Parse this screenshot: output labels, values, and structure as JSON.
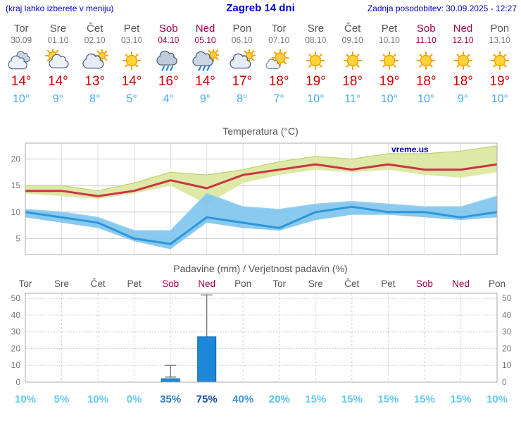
{
  "header": {
    "menu_note": "(kraj lahko izberete v meniju)",
    "title": "Zagreb 14 dni",
    "last_update": "Zadnja posodobitev: 30.09.2025 - 12:27"
  },
  "colors": {
    "title_blue": "#0000CC",
    "day_gray": "#555555",
    "weekend_red": "#A3004B",
    "tmax_red": "#D40000",
    "tmin_blue": "#45ACF0",
    "bar_blue": "#1E88D8",
    "bar_border": "#0D5FA8",
    "temp_line_red": "#CC3344",
    "temp_line_blue": "#2E96D8",
    "temp_band_green": "#DEE9A6",
    "temp_band_blue": "#7CC4EC"
  },
  "days": [
    {
      "name": "Tor",
      "date": "30.09",
      "weekend": false,
      "icon": "cloudy",
      "tmax": "14°",
      "tmin": "10°",
      "pop": "10%",
      "pop_color": "#62CAF2"
    },
    {
      "name": "Sre",
      "date": "01.10",
      "weekend": false,
      "icon": "partly-cloudy",
      "tmax": "14°",
      "tmin": "9°",
      "pop": "5%",
      "pop_color": "#62CAF2"
    },
    {
      "name": "Čet",
      "date": "02.10",
      "weekend": false,
      "icon": "mostly-cloudy",
      "tmax": "13°",
      "tmin": "8°",
      "pop": "10%",
      "pop_color": "#62CAF2"
    },
    {
      "name": "Pet",
      "date": "03.10",
      "weekend": false,
      "icon": "sunny",
      "tmax": "14°",
      "tmin": "5°",
      "pop": "0%",
      "pop_color": "#62CAF2"
    },
    {
      "name": "Sob",
      "date": "04.10",
      "weekend": true,
      "icon": "rain",
      "tmax": "16°",
      "tmin": "4°",
      "pop": "35%",
      "pop_color": "#2F7CC0"
    },
    {
      "name": "Ned",
      "date": "05.10",
      "weekend": true,
      "icon": "rain-sun",
      "tmax": "14°",
      "tmin": "9°",
      "pop": "75%",
      "pop_color": "#16499E"
    },
    {
      "name": "Pon",
      "date": "06.10",
      "weekend": false,
      "icon": "mostly-cloudy",
      "tmax": "17°",
      "tmin": "8°",
      "pop": "40%",
      "pop_color": "#3E9AD8"
    },
    {
      "name": "Tor",
      "date": "07.10",
      "weekend": false,
      "icon": "partly-sunny",
      "tmax": "18°",
      "tmin": "7°",
      "pop": "20%",
      "pop_color": "#55BEEC"
    },
    {
      "name": "Sre",
      "date": "08.10",
      "weekend": false,
      "icon": "sunny",
      "tmax": "19°",
      "tmin": "10°",
      "pop": "15%",
      "pop_color": "#62CAF2"
    },
    {
      "name": "Čet",
      "date": "09.10",
      "weekend": false,
      "icon": "sunny",
      "tmax": "18°",
      "tmin": "11°",
      "pop": "15%",
      "pop_color": "#62CAF2"
    },
    {
      "name": "Pet",
      "date": "10.10",
      "weekend": false,
      "icon": "sunny",
      "tmax": "19°",
      "tmin": "10°",
      "pop": "15%",
      "pop_color": "#62CAF2"
    },
    {
      "name": "Sob",
      "date": "11.10",
      "weekend": true,
      "icon": "sunny",
      "tmax": "18°",
      "tmin": "10°",
      "pop": "15%",
      "pop_color": "#62CAF2"
    },
    {
      "name": "Ned",
      "date": "12.10",
      "weekend": true,
      "icon": "sunny",
      "tmax": "18°",
      "tmin": "9°",
      "pop": "15%",
      "pop_color": "#62CAF2"
    },
    {
      "name": "Pon",
      "date": "13.10",
      "weekend": false,
      "icon": "sunny",
      "tmax": "19°",
      "tmin": "10°",
      "pop": "10%",
      "pop_color": "#62CAF2"
    }
  ],
  "chart_data": [
    {
      "type": "line",
      "title": "Temperatura (°C)",
      "watermark": "vreme.us",
      "x_labels": [
        "Tor",
        "Sre",
        "Čet",
        "Pet",
        "Sob",
        "Ned",
        "Pon",
        "Tor",
        "Sre",
        "Čet",
        "Pet",
        "Sob",
        "Ned",
        "Pon"
      ],
      "ylim": [
        2,
        23
      ],
      "yticks": [
        5,
        10,
        15,
        20
      ],
      "series": [
        {
          "name": "tmax",
          "values": [
            14,
            14,
            13,
            14,
            16,
            14.5,
            17,
            18,
            19,
            18,
            19,
            18,
            18,
            19
          ]
        },
        {
          "name": "tmax_band_high",
          "values": [
            15,
            15,
            14,
            15.5,
            17.5,
            17,
            18,
            19.5,
            20.5,
            20,
            21,
            21,
            21.5,
            22.5
          ]
        },
        {
          "name": "tmax_band_low",
          "values": [
            13.5,
            13,
            12.5,
            13.5,
            15,
            11.5,
            15.5,
            17,
            18,
            17.5,
            18,
            17,
            16.5,
            17.5
          ]
        },
        {
          "name": "tmin",
          "values": [
            10,
            9,
            8,
            5,
            4,
            9,
            8,
            7,
            10,
            11,
            10,
            10,
            9,
            10
          ]
        },
        {
          "name": "tmin_band_high",
          "values": [
            10.5,
            10,
            9,
            6.5,
            6.5,
            13.5,
            11,
            10.5,
            11.5,
            12,
            11.5,
            11,
            11,
            13
          ]
        },
        {
          "name": "tmin_band_low",
          "values": [
            9,
            8,
            7,
            4.5,
            3,
            8,
            7,
            6.5,
            8.5,
            9.5,
            9.5,
            9,
            8.5,
            9
          ]
        }
      ]
    },
    {
      "type": "bar",
      "title": "Padavine (mm) / Verjetnost padavin (%)",
      "categories": [
        "Tor",
        "Sre",
        "Čet",
        "Pet",
        "Sob",
        "Ned",
        "Pon",
        "Tor",
        "Sre",
        "Čet",
        "Pet",
        "Sob",
        "Ned",
        "Pon"
      ],
      "ylim": [
        0,
        53
      ],
      "yticks": [
        0,
        10,
        20,
        30,
        40,
        50
      ],
      "values_mm": [
        0,
        0,
        0,
        0,
        2,
        27,
        0,
        0,
        0,
        0,
        0,
        0,
        0,
        0
      ],
      "whisker_low": [
        null,
        null,
        null,
        null,
        3,
        5,
        null,
        null,
        null,
        null,
        null,
        null,
        null,
        null
      ],
      "whisker_high": [
        null,
        null,
        null,
        null,
        10,
        52,
        null,
        null,
        null,
        null,
        null,
        null,
        null,
        null
      ],
      "pop_percent": [
        "10%",
        "5%",
        "10%",
        "0%",
        "35%",
        "75%",
        "40%",
        "20%",
        "15%",
        "15%",
        "15%",
        "15%",
        "15%",
        "10%"
      ]
    }
  ]
}
